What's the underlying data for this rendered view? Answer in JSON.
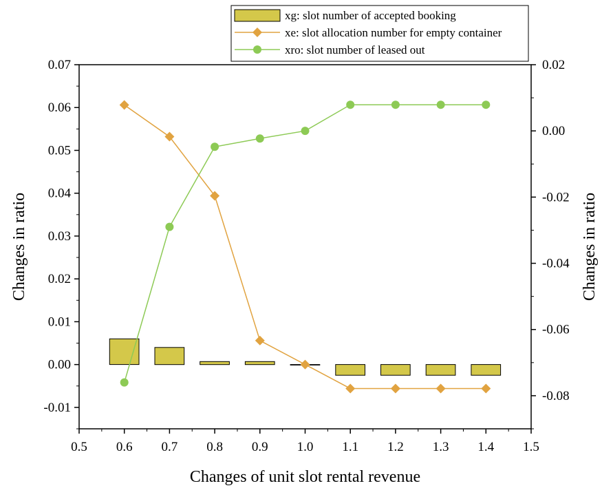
{
  "chart_data": {
    "type": "bar",
    "title": "",
    "xlabel": "Changes of unit slot rental revenue",
    "ylabel": "Changes in ratio",
    "y2label": "Changes in ratio",
    "xlim": [
      0.5,
      1.5
    ],
    "ylim": [
      -0.015,
      0.07
    ],
    "y2lim": [
      -0.09,
      0.02
    ],
    "x_ticks": [
      "0.5",
      "0.6",
      "0.7",
      "0.8",
      "0.9",
      "1.0",
      "1.1",
      "1.2",
      "1.3",
      "1.4",
      "1.5"
    ],
    "y_ticks": [
      "-0.01",
      "0.00",
      "0.01",
      "0.02",
      "0.03",
      "0.04",
      "0.05",
      "0.06",
      "0.07"
    ],
    "y2_ticks": [
      "-0.08",
      "-0.06",
      "-0.04",
      "-0.02",
      "0.00",
      "0.02"
    ],
    "grid": false,
    "legend_position": "top-center",
    "x": [
      0.6,
      0.7,
      0.8,
      0.9,
      1.0,
      1.1,
      1.2,
      1.3,
      1.4
    ],
    "series": [
      {
        "name": "xg: slot number of accepted booking",
        "type": "bar",
        "axis": "left",
        "color": "#d4c84a",
        "values": [
          0.006,
          0.004,
          0.0007,
          0.0007,
          0.0,
          -0.0025,
          -0.0025,
          -0.0025,
          -0.0025
        ]
      },
      {
        "name": "xe: slot allocation number for empty container",
        "type": "line",
        "marker": "diamond",
        "axis": "left",
        "color": "#e1a340",
        "values": [
          0.0606,
          0.0532,
          0.0394,
          0.0056,
          0.0,
          -0.0056,
          -0.0056,
          -0.0056,
          -0.0056
        ]
      },
      {
        "name": "xro: slot number of leased out",
        "type": "line",
        "marker": "circle",
        "axis": "right",
        "color": "#8dca55",
        "values": [
          -0.076,
          -0.029,
          -0.0048,
          -0.0023,
          0.0,
          0.0079,
          0.0079,
          0.0079,
          0.0079
        ]
      }
    ]
  }
}
